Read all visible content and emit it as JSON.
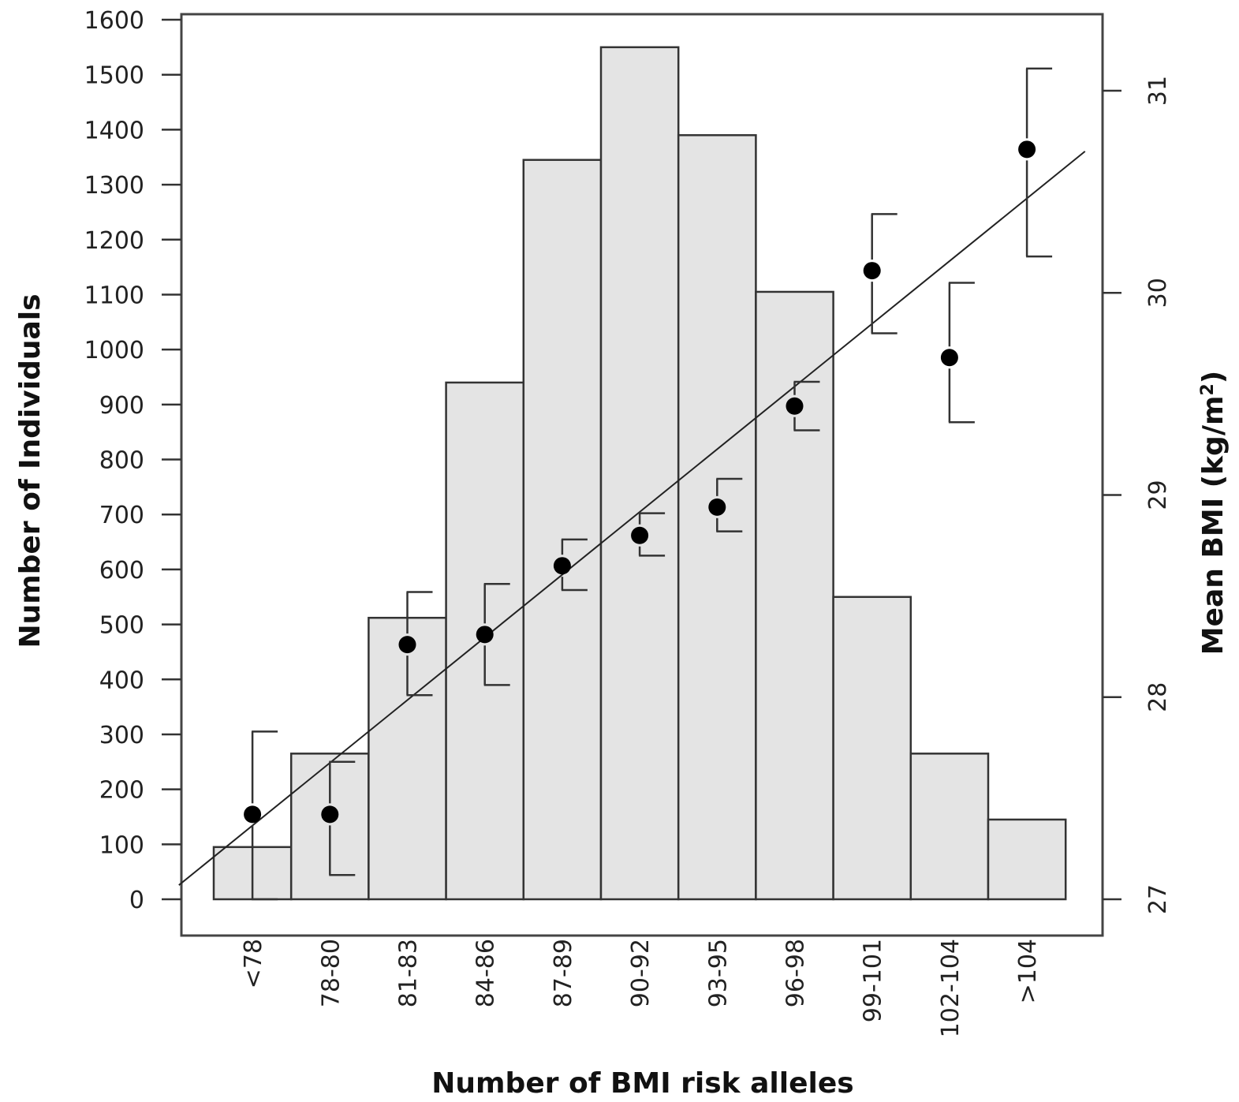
{
  "chart_data": {
    "type": "bar",
    "xlabel": "Number of BMI risk alleles",
    "ylabel": "Number of Individuals",
    "y2label": "Mean BMI (kg/m",
    "y2label_sup": "2",
    "y2label_end": ")",
    "categories": [
      "<78",
      "78-80",
      "81-83",
      "84-86",
      "87-89",
      "90-92",
      "93-95",
      "96-98",
      "99-101",
      "102-104",
      ">104"
    ],
    "counts": [
      95,
      265,
      512,
      940,
      1345,
      1550,
      1390,
      1105,
      550,
      265,
      145
    ],
    "ylim": [
      -60,
      1620
    ],
    "yticks": [
      0,
      100,
      200,
      300,
      400,
      500,
      600,
      700,
      800,
      900,
      1000,
      1100,
      1200,
      1300,
      1400,
      1500,
      1600
    ],
    "y2ticks": [
      27,
      28,
      29,
      30,
      31
    ],
    "mean_bmi": [
      27.42,
      27.42,
      28.26,
      28.31,
      28.65,
      28.8,
      28.94,
      29.44,
      30.11,
      29.68,
      30.71
    ],
    "bmi_lower": [
      27.0,
      27.12,
      28.01,
      28.06,
      28.53,
      28.7,
      28.82,
      29.32,
      29.8,
      29.36,
      30.18
    ],
    "bmi_upper": [
      27.83,
      27.68,
      28.52,
      28.56,
      28.78,
      28.91,
      29.08,
      29.56,
      30.39,
      30.05,
      31.11
    ],
    "trend_line": {
      "x_start": -0.45,
      "bmi_start": 27.07,
      "x_end": 11.25,
      "bmi_end": 30.7
    },
    "bar_color": "#e4e4e4"
  }
}
